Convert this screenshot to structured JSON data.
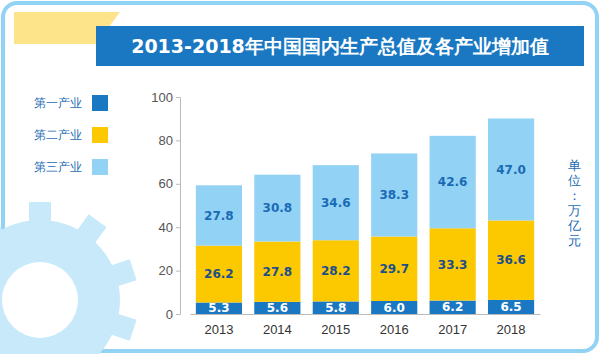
{
  "chart_data": {
    "type": "bar",
    "title": "2013-2018年中国国内生产总值及各产业增加值",
    "categories": [
      "2013",
      "2014",
      "2015",
      "2016",
      "2017",
      "2018"
    ],
    "series": [
      {
        "name": "第一产业",
        "color": "#1a78c2",
        "values": [
          5.3,
          5.6,
          5.8,
          6.0,
          6.2,
          6.5
        ],
        "value_labels": [
          "5.3",
          "5.6",
          "5.8",
          "6.0",
          "6.2",
          "6.5"
        ]
      },
      {
        "name": "第二产业",
        "color": "#fcc800",
        "values": [
          26.2,
          27.8,
          28.2,
          29.7,
          33.3,
          36.6
        ],
        "value_labels": [
          "26.2",
          "27.8",
          "28.2",
          "29.7",
          "33.3",
          "36.6"
        ]
      },
      {
        "name": "第三产业",
        "color": "#92d2f4",
        "values": [
          27.8,
          30.8,
          34.6,
          38.3,
          42.6,
          47.0
        ],
        "value_labels": [
          "27.8",
          "30.8",
          "34.6",
          "38.3",
          "42.6",
          "47.0"
        ]
      }
    ],
    "ylabel": "单位：万亿元",
    "ylim": [
      0,
      100
    ],
    "yticks": [
      0,
      20,
      40,
      60,
      80,
      100
    ],
    "stacked": true,
    "data_labels": true,
    "grid": false,
    "legend": "left"
  }
}
